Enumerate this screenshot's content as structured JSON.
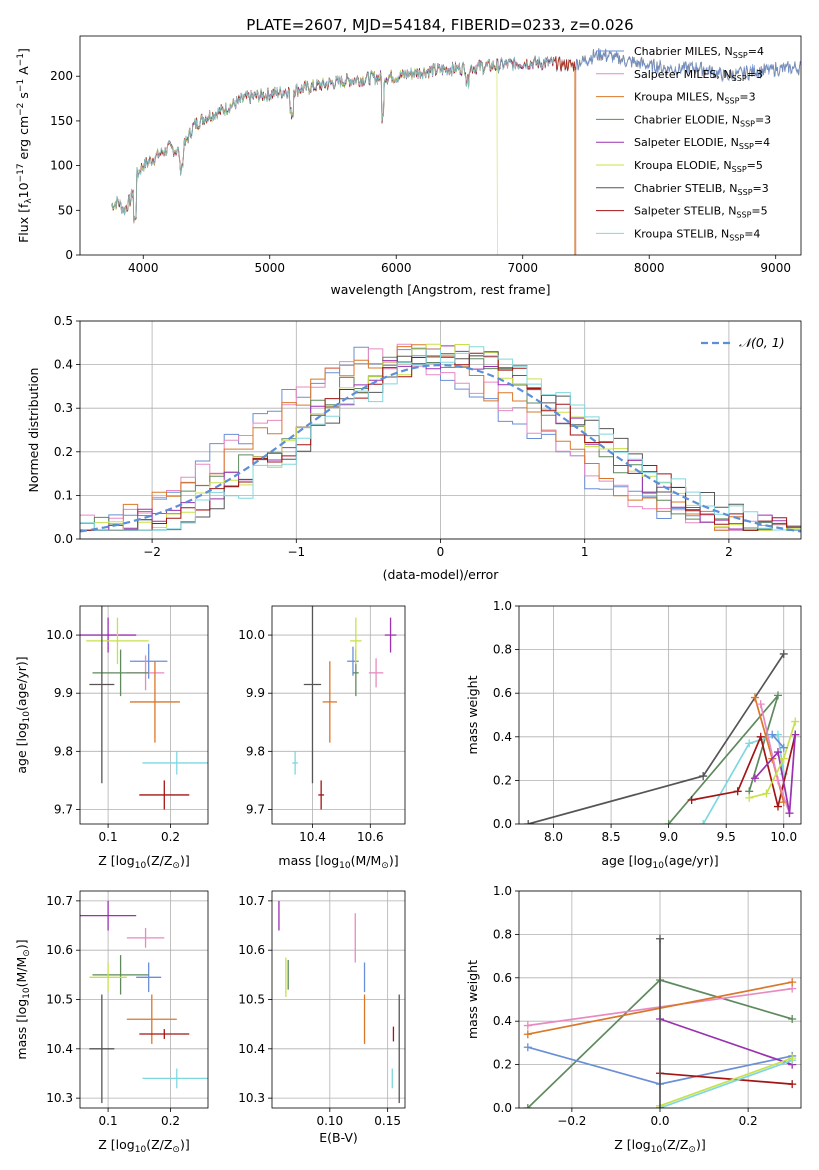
{
  "figure": {
    "title": "PLATE=2607, MJD=54184, FIBERID=0233, z=0.026"
  },
  "series": [
    {
      "name": "Chabrier MILES",
      "nssp": "4",
      "color": "#6a8fd6"
    },
    {
      "name": "Salpeter MILES",
      "nssp": "3",
      "color": "#e88ac2"
    },
    {
      "name": "Kroupa MILES",
      "nssp": "3",
      "color": "#d9782a"
    },
    {
      "name": "Chabrier ELODIE",
      "nssp": "3",
      "color": "#5e8a5e"
    },
    {
      "name": "Salpeter ELODIE",
      "nssp": "4",
      "color": "#9b30b0"
    },
    {
      "name": "Kroupa ELODIE",
      "nssp": "5",
      "color": "#c8e04a"
    },
    {
      "name": "Chabrier STELIB",
      "nssp": "3",
      "color": "#555555"
    },
    {
      "name": "Salpeter STELIB",
      "nssp": "5",
      "color": "#a31515"
    },
    {
      "name": "Kroupa STELIB",
      "nssp": "4",
      "color": "#7fd8df"
    }
  ],
  "chart_data": [
    {
      "id": "spectrum",
      "type": "line",
      "xlabel": "wavelength [Angstrom, rest frame]",
      "ylabel_text": "Flux [f",
      "ylabel_parts": {
        "lambda": "λ",
        "ten": "10",
        "exp": "−17",
        "units": " erg cm",
        "cm_exp": "−2",
        "s": " s",
        "s_exp": "−1",
        "a": " A",
        "a_exp": "−1",
        "close": "]"
      },
      "xlim": [
        3500,
        9200
      ],
      "ylim": [
        0,
        245
      ],
      "xticks": [
        4000,
        5000,
        6000,
        7000,
        8000,
        9000
      ],
      "yticks": [
        0,
        50,
        100,
        150,
        200
      ],
      "legend_label_sub": "SSP",
      "legend_placement": "top-right",
      "approx_envelope": {
        "x": [
          3750,
          3800,
          3850,
          3900,
          3950,
          4000,
          4100,
          4200,
          4300,
          4400,
          4500,
          4600,
          4800,
          5000,
          5200,
          5400,
          5600,
          5800,
          6000,
          6200,
          6400,
          6600,
          6800,
          7000,
          7200,
          7400,
          7600,
          7800,
          8000,
          8200,
          8400,
          8600,
          8800,
          9000,
          9200
        ],
        "y": [
          55,
          60,
          50,
          62,
          90,
          100,
          110,
          120,
          115,
          145,
          155,
          160,
          175,
          180,
          185,
          190,
          195,
          198,
          200,
          205,
          208,
          210,
          212,
          215,
          215,
          212,
          225,
          218,
          212,
          208,
          210,
          200,
          205,
          208,
          210
        ]
      },
      "truncations": [
        {
          "series": "Kroupa ELODIE",
          "x_end": 6800
        },
        {
          "series": "Salpeter STELIB",
          "x_end": 7420
        },
        {
          "series": "Kroupa MILES",
          "x_end": 7410
        }
      ],
      "extent_notes": [
        {
          "series": "Chabrier MILES",
          "x_end": 9200
        },
        {
          "series": "Chabrier STELIB",
          "x_end": 9200
        }
      ]
    },
    {
      "id": "residuals",
      "type": "histogram",
      "xlabel": "(data-model)/error",
      "ylabel": "Normed distribution",
      "xlim": [
        -2.5,
        2.5
      ],
      "ylim": [
        0,
        0.5
      ],
      "xticks": [
        -2,
        -1,
        0,
        1,
        2
      ],
      "yticks": [
        0.0,
        0.1,
        0.2,
        0.3,
        0.4,
        0.5
      ],
      "grid": true,
      "reference_curve": {
        "label": "𝒩(0, 1)",
        "mean": 0,
        "sigma": 1,
        "color": "#5b8fd9"
      },
      "legend_placement": "top-right"
    },
    {
      "id": "age_vs_Z",
      "type": "errorbar",
      "xlabel": "Z [log",
      "xlabel_tail": "(Z/Z",
      "ylabel": "age  [log",
      "ylabel_tail": "(age/yr)]",
      "xlim": [
        0.055,
        0.26
      ],
      "ylim": [
        9.675,
        10.05
      ],
      "xticks": [
        0.1,
        0.2
      ],
      "yticks": [
        9.7,
        9.8,
        9.9,
        10.0
      ],
      "points": [
        {
          "series": "Chabrier MILES",
          "x": 0.165,
          "y": 9.955,
          "xerr": 0.03,
          "yerr": 0.03
        },
        {
          "series": "Salpeter MILES",
          "x": 0.16,
          "y": 9.935,
          "xerr": 0.03,
          "yerr": 0.03
        },
        {
          "series": "Kroupa MILES",
          "x": 0.175,
          "y": 9.885,
          "xerr": 0.04,
          "yerr": 0.07
        },
        {
          "series": "Chabrier ELODIE",
          "x": 0.12,
          "y": 9.935,
          "xerr": 0.045,
          "yerr": 0.04
        },
        {
          "series": "Salpeter ELODIE",
          "x": 0.1,
          "y": 10.0,
          "xerr": 0.045,
          "yerr": 0.03
        },
        {
          "series": "Kroupa ELODIE",
          "x": 0.115,
          "y": 9.99,
          "xerr": 0.05,
          "yerr": 0.04
        },
        {
          "series": "Chabrier STELIB",
          "x": 0.09,
          "y": 9.915,
          "xerr": 0.02,
          "yerr": 0.17
        },
        {
          "series": "Salpeter STELIB",
          "x": 0.19,
          "y": 9.725,
          "xerr": 0.04,
          "yerr": 0.025
        },
        {
          "series": "Kroupa STELIB",
          "x": 0.21,
          "y": 9.78,
          "xerr": 0.055,
          "yerr": 0.02
        }
      ]
    },
    {
      "id": "age_vs_mass",
      "type": "errorbar",
      "xlabel": "mass [log",
      "xlabel_tail": "(M/M",
      "xlim": [
        10.26,
        10.72
      ],
      "ylim": [
        9.675,
        10.05
      ],
      "xticks": [
        10.4,
        10.6
      ],
      "yticks": [
        9.7,
        9.8,
        9.9,
        10.0
      ],
      "points": [
        {
          "series": "Chabrier MILES",
          "x": 10.54,
          "y": 9.955,
          "xerr": 0.02,
          "yerr": 0.025
        },
        {
          "series": "Salpeter MILES",
          "x": 10.62,
          "y": 9.935,
          "xerr": 0.025,
          "yerr": 0.025
        },
        {
          "series": "Kroupa MILES",
          "x": 10.46,
          "y": 9.885,
          "xerr": 0.025,
          "yerr": 0.07
        },
        {
          "series": "Chabrier ELODIE",
          "x": 10.55,
          "y": 9.935,
          "xerr": 0.01,
          "yerr": 0.04
        },
        {
          "series": "Salpeter ELODIE",
          "x": 10.67,
          "y": 10.0,
          "xerr": 0.02,
          "yerr": 0.03
        },
        {
          "series": "Kroupa ELODIE",
          "x": 10.55,
          "y": 9.99,
          "xerr": 0.02,
          "yerr": 0.04
        },
        {
          "series": "Chabrier STELIB",
          "x": 10.4,
          "y": 9.915,
          "xerr": 0.03,
          "yerr": 0.17
        },
        {
          "series": "Salpeter STELIB",
          "x": 10.43,
          "y": 9.725,
          "xerr": 0.01,
          "yerr": 0.025
        },
        {
          "series": "Kroupa STELIB",
          "x": 10.34,
          "y": 9.78,
          "xerr": 0.01,
          "yerr": 0.02
        }
      ]
    },
    {
      "id": "weight_vs_age",
      "type": "line",
      "xlabel": "age  [log",
      "xlabel_tail": "(age/yr)]",
      "ylabel": "mass weight",
      "xlim": [
        7.7,
        10.15
      ],
      "ylim": [
        0,
        1.0
      ],
      "xticks": [
        8.0,
        8.5,
        9.0,
        9.5,
        10.0
      ],
      "yticks": [
        0.0,
        0.2,
        0.4,
        0.6,
        0.8,
        1.0
      ],
      "grid": true,
      "lines": [
        {
          "series": "Chabrier STELIB",
          "x": [
            7.78,
            9.3,
            10.0
          ],
          "y": [
            0.0,
            0.22,
            0.78
          ]
        },
        {
          "series": "Chabrier ELODIE",
          "x": [
            9.0,
            9.95,
            9.7
          ],
          "y": [
            0.0,
            0.59,
            0.15
          ]
        },
        {
          "series": "Kroupa STELIB",
          "x": [
            9.3,
            9.7,
            9.95,
            10.0
          ],
          "y": [
            0.0,
            0.37,
            0.41,
            0.23
          ]
        },
        {
          "series": "Salpeter STELIB",
          "x": [
            9.2,
            9.6,
            9.8,
            9.95,
            10.1
          ],
          "y": [
            0.11,
            0.15,
            0.4,
            0.08,
            0.41
          ]
        },
        {
          "series": "Kroupa MILES",
          "x": [
            9.75,
            9.9,
            10.0
          ],
          "y": [
            0.58,
            0.3,
            0.1
          ]
        },
        {
          "series": "Salpeter MILES",
          "x": [
            9.8,
            9.95,
            10.05
          ],
          "y": [
            0.55,
            0.2,
            0.05
          ]
        },
        {
          "series": "Salpeter ELODIE",
          "x": [
            9.75,
            9.95,
            10.05,
            10.1
          ],
          "y": [
            0.21,
            0.33,
            0.05,
            0.41
          ]
        },
        {
          "series": "Kroupa ELODIE",
          "x": [
            9.7,
            9.85,
            10.0,
            10.1
          ],
          "y": [
            0.12,
            0.14,
            0.3,
            0.47
          ]
        },
        {
          "series": "Chabrier MILES",
          "x": [
            9.9,
            10.0
          ],
          "y": [
            0.41,
            0.35
          ]
        }
      ]
    },
    {
      "id": "mass_vs_Z",
      "type": "errorbar",
      "xlabel": "Z [log",
      "xlabel_tail": "(Z/Z",
      "ylabel": "mass [log",
      "ylabel_tail": "(M/M",
      "xlim": [
        0.055,
        0.26
      ],
      "ylim": [
        10.28,
        10.72
      ],
      "xticks": [
        0.1,
        0.2
      ],
      "yticks": [
        10.3,
        10.4,
        10.5,
        10.6,
        10.7
      ],
      "points": [
        {
          "series": "Chabrier MILES",
          "x": 0.165,
          "y": 10.545,
          "xerr": 0.02,
          "yerr": 0.03
        },
        {
          "series": "Salpeter MILES",
          "x": 0.16,
          "y": 10.625,
          "xerr": 0.03,
          "yerr": 0.02
        },
        {
          "series": "Kroupa MILES",
          "x": 0.17,
          "y": 10.46,
          "xerr": 0.04,
          "yerr": 0.05
        },
        {
          "series": "Chabrier ELODIE",
          "x": 0.12,
          "y": 10.55,
          "xerr": 0.045,
          "yerr": 0.04
        },
        {
          "series": "Salpeter ELODIE",
          "x": 0.1,
          "y": 10.67,
          "xerr": 0.045,
          "yerr": 0.03
        },
        {
          "series": "Kroupa ELODIE",
          "x": 0.1,
          "y": 10.545,
          "xerr": 0.03,
          "yerr": 0.03
        },
        {
          "series": "Chabrier STELIB",
          "x": 0.09,
          "y": 10.4,
          "xerr": 0.02,
          "yerr": 0.11
        },
        {
          "series": "Salpeter STELIB",
          "x": 0.19,
          "y": 10.43,
          "xerr": 0.04,
          "yerr": 0.01
        },
        {
          "series": "Kroupa STELIB",
          "x": 0.21,
          "y": 10.34,
          "xerr": 0.055,
          "yerr": 0.02
        }
      ]
    },
    {
      "id": "mass_vs_ebv",
      "type": "errorbar",
      "xlabel": "E(B-V)",
      "xlim": [
        0.05,
        0.165
      ],
      "ylim": [
        10.28,
        10.72
      ],
      "xticks": [
        0.1,
        0.15
      ],
      "yticks": [
        10.3,
        10.4,
        10.5,
        10.6,
        10.7
      ],
      "points": [
        {
          "series": "Salpeter ELODIE",
          "x": 0.056,
          "y": 10.67,
          "xerr": 0,
          "yerr": 0.03
        },
        {
          "series": "Kroupa ELODIE",
          "x": 0.062,
          "y": 10.545,
          "xerr": 0,
          "yerr": 0.04
        },
        {
          "series": "Chabrier ELODIE",
          "x": 0.064,
          "y": 10.55,
          "xerr": 0,
          "yerr": 0.03
        },
        {
          "series": "Salpeter MILES",
          "x": 0.122,
          "y": 10.625,
          "xerr": 0,
          "yerr": 0.05
        },
        {
          "series": "Chabrier MILES",
          "x": 0.13,
          "y": 10.545,
          "xerr": 0,
          "yerr": 0.03
        },
        {
          "series": "Kroupa MILES",
          "x": 0.13,
          "y": 10.46,
          "xerr": 0,
          "yerr": 0.05
        },
        {
          "series": "Salpeter STELIB",
          "x": 0.155,
          "y": 10.43,
          "xerr": 0,
          "yerr": 0.015
        },
        {
          "series": "Kroupa STELIB",
          "x": 0.154,
          "y": 10.34,
          "xerr": 0,
          "yerr": 0.02
        },
        {
          "series": "Chabrier STELIB",
          "x": 0.16,
          "y": 10.4,
          "xerr": 0,
          "yerr": 0.11
        }
      ]
    },
    {
      "id": "weight_vs_Z",
      "type": "line",
      "xlabel": "Z [log",
      "xlabel_tail": "(Z/Z",
      "ylabel": "mass weight",
      "xlim": [
        -0.32,
        0.32
      ],
      "ylim": [
        0,
        1.0
      ],
      "xticks": [
        -0.2,
        0.0,
        0.2
      ],
      "yticks": [
        0.0,
        0.2,
        0.4,
        0.6,
        0.8,
        1.0
      ],
      "grid": true,
      "lines": [
        {
          "series": "Chabrier ELODIE",
          "x": [
            -0.3,
            0.0,
            0.3
          ],
          "y": [
            0.0,
            0.59,
            0.41
          ]
        },
        {
          "series": "Salpeter MILES",
          "x": [
            -0.3,
            0.3
          ],
          "y": [
            0.38,
            0.55
          ]
        },
        {
          "series": "Kroupa MILES",
          "x": [
            -0.3,
            0.3
          ],
          "y": [
            0.34,
            0.58
          ]
        },
        {
          "series": "Chabrier MILES",
          "x": [
            -0.3,
            0.0,
            0.3
          ],
          "y": [
            0.28,
            0.11,
            0.24
          ]
        },
        {
          "series": "Salpeter ELODIE",
          "x": [
            0.0,
            0.3
          ],
          "y": [
            0.41,
            0.2
          ]
        },
        {
          "series": "Salpeter STELIB",
          "x": [
            0.0,
            0.3
          ],
          "y": [
            0.16,
            0.11
          ]
        },
        {
          "series": "Kroupa STELIB",
          "x": [
            0.0,
            0.3
          ],
          "y": [
            0.0,
            0.22
          ]
        },
        {
          "series": "Kroupa ELODIE",
          "x": [
            0.0,
            0.3
          ],
          "y": [
            0.01,
            0.23
          ]
        },
        {
          "series": "Chabrier STELIB",
          "x": [
            0.0,
            0.0
          ],
          "y": [
            0.0,
            0.78
          ]
        }
      ]
    }
  ]
}
